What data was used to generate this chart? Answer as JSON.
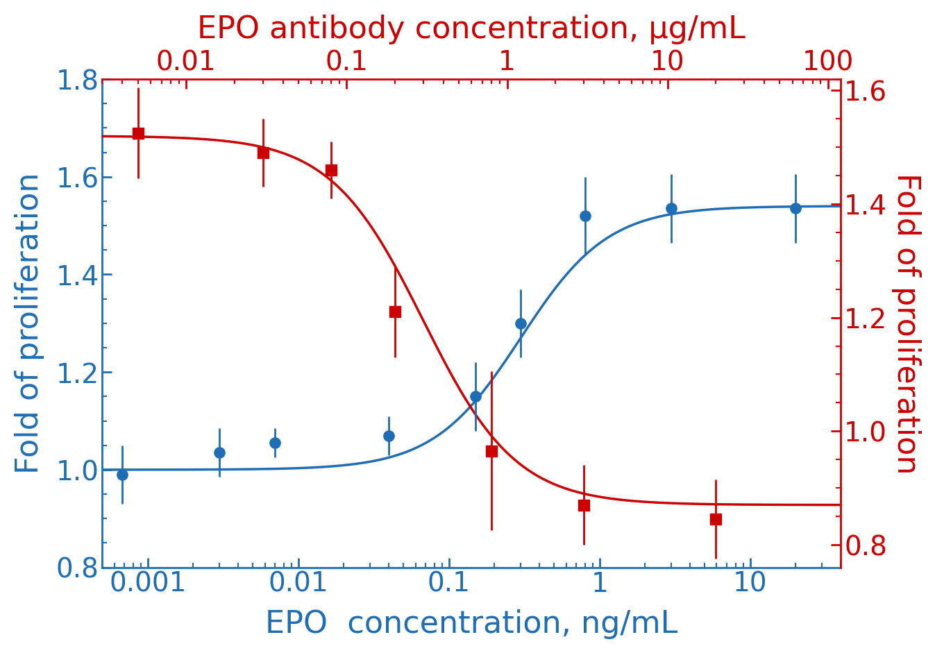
{
  "blue_x": [
    0.00068,
    0.003,
    0.007,
    0.04,
    0.15,
    0.3,
    0.8,
    3.0,
    20.0
  ],
  "blue_y": [
    0.99,
    1.035,
    1.055,
    1.07,
    1.15,
    1.3,
    1.52,
    1.535,
    1.535
  ],
  "blue_yerr": [
    0.06,
    0.05,
    0.03,
    0.04,
    0.07,
    0.07,
    0.08,
    0.07,
    0.07
  ],
  "red_x": [
    0.005,
    0.03,
    0.08,
    0.2,
    0.8,
    3.0,
    20.0
  ],
  "red_y": [
    1.525,
    1.49,
    1.46,
    1.21,
    0.965,
    0.87,
    0.845
  ],
  "red_yerr": [
    0.08,
    0.06,
    0.05,
    0.08,
    0.14,
    0.07,
    0.07
  ],
  "blue_color": "#1f6eb5",
  "red_color": "#cc0000",
  "blue_xlim": [
    0.0005,
    40.0
  ],
  "blue_ylim": [
    0.8,
    1.8
  ],
  "red_xlim": [
    0.003,
    120.0
  ],
  "red_ylim": [
    0.76,
    1.62
  ],
  "xlabel_bottom": "EPO  concentration, ng/mL",
  "xlabel_top": "EPO antibody concentration, μg/mL",
  "ylabel_left": "Fold of proliferation",
  "ylabel_right": "Fold of proliferation",
  "blue_yticks": [
    0.8,
    1.0,
    1.2,
    1.4,
    1.6,
    1.8
  ],
  "red_yticks": [
    0.8,
    1.0,
    1.2,
    1.4,
    1.6
  ],
  "top_xticks": [
    0.01,
    0.1,
    1,
    10,
    100
  ],
  "bottom_xticks": [
    0.001,
    0.01,
    0.1,
    1,
    10
  ],
  "fontsize": 32,
  "tick_fontsize": 28,
  "linewidth": 2.5,
  "markersize": 11,
  "elinewidth": 2.0
}
